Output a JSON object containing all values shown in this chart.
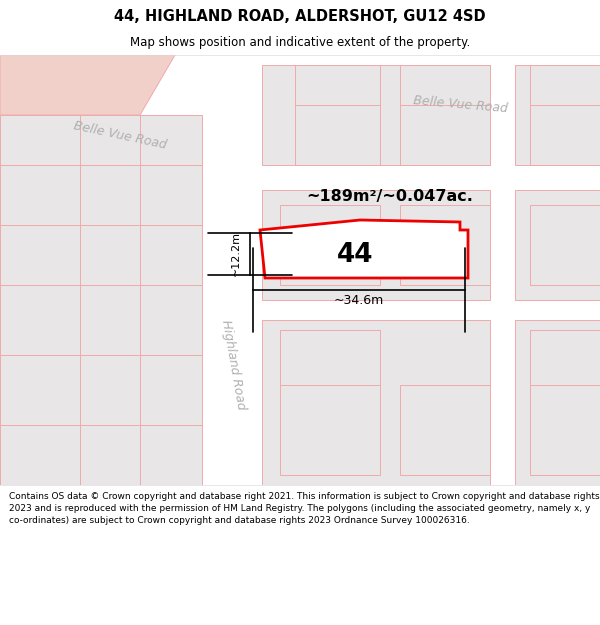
{
  "title": "44, HIGHLAND ROAD, ALDERSHOT, GU12 4SD",
  "subtitle": "Map shows position and indicative extent of the property.",
  "footer": "Contains OS data © Crown copyright and database right 2021. This information is subject to Crown copyright and database rights 2023 and is reproduced with the permission of\nHM Land Registry. The polygons (including the associated geometry, namely x, y co-ordinates) are subject to Crown copyright and database rights 2023 Ordnance Survey\n100026316.",
  "area_label": "~189m²/~0.047ac.",
  "number_label": "44",
  "width_label": "~34.6m",
  "height_label": "~12.2m",
  "road_label_belle_vue_right": "Belle Vue Road",
  "road_label_belle_vue_left": "Belle Vue Road",
  "road_label_highland": "Highland Road",
  "map_bg": "#f5f3f3",
  "header_bg": "#ffffff",
  "footer_bg": "#ffffff",
  "building_fill": "#e8e6e6",
  "building_stroke": "#f0aaaa",
  "highlight_fill": "#ffffff",
  "highlight_stroke": "#ee0000",
  "road_fill": "#ffffff",
  "road_label_color": "#b0b0b0",
  "salmon_fill": "#f0d0c8",
  "dim_line_color": "#000000",
  "text_color": "#000000"
}
